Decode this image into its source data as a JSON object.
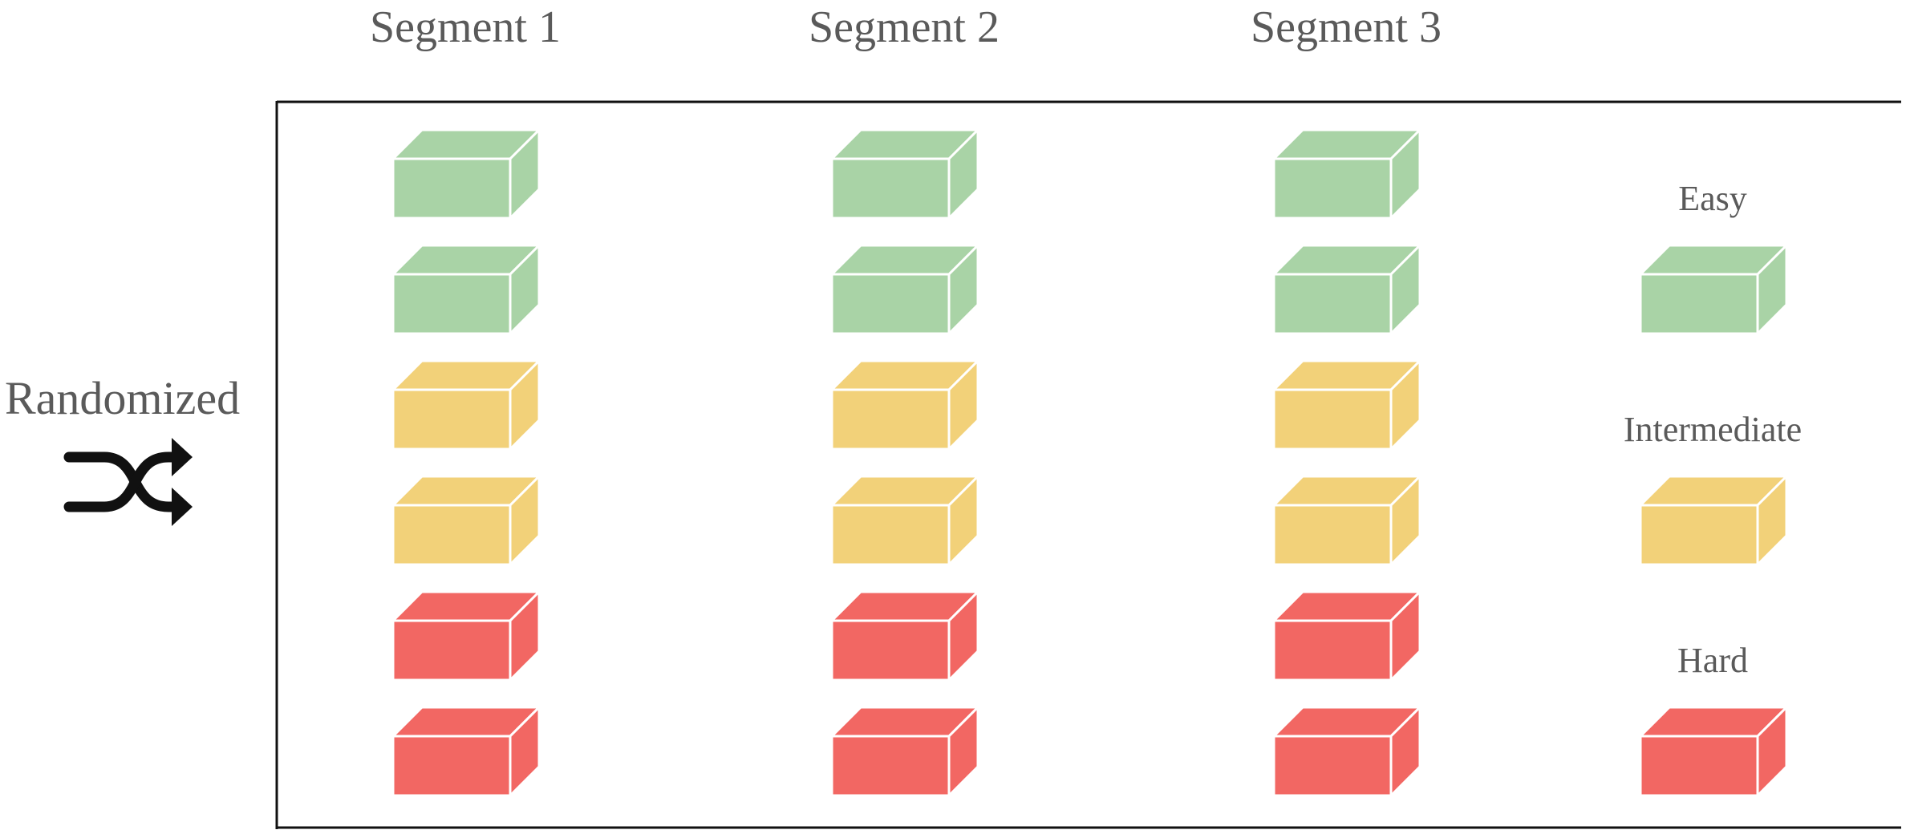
{
  "segments": [
    {
      "title": "Segment 1",
      "blocks": [
        "easy",
        "easy",
        "intermediate",
        "intermediate",
        "hard",
        "hard"
      ]
    },
    {
      "title": "Segment 2",
      "blocks": [
        "easy",
        "easy",
        "intermediate",
        "intermediate",
        "hard",
        "hard"
      ]
    },
    {
      "title": "Segment 3",
      "blocks": [
        "easy",
        "easy",
        "intermediate",
        "intermediate",
        "hard",
        "hard"
      ]
    }
  ],
  "randomized_label": "Randomized",
  "legend": [
    {
      "level": "easy",
      "label": "Easy"
    },
    {
      "level": "intermediate",
      "label": "Intermediate"
    },
    {
      "level": "hard",
      "label": "Hard"
    }
  ],
  "colors": {
    "easy": {
      "front": "#a9d3a6",
      "top": "#a9d3a6",
      "side": "#a9d3a6"
    },
    "intermediate": {
      "front": "#f2d179",
      "top": "#f2d179",
      "side": "#f2d179"
    },
    "hard": {
      "front": "#f26763",
      "top": "#f26763",
      "side": "#f26763"
    },
    "edge": "#ffffff",
    "frame": "#111111",
    "shuffle_icon": "#111111"
  },
  "icons": {
    "randomized": "shuffle-icon"
  }
}
